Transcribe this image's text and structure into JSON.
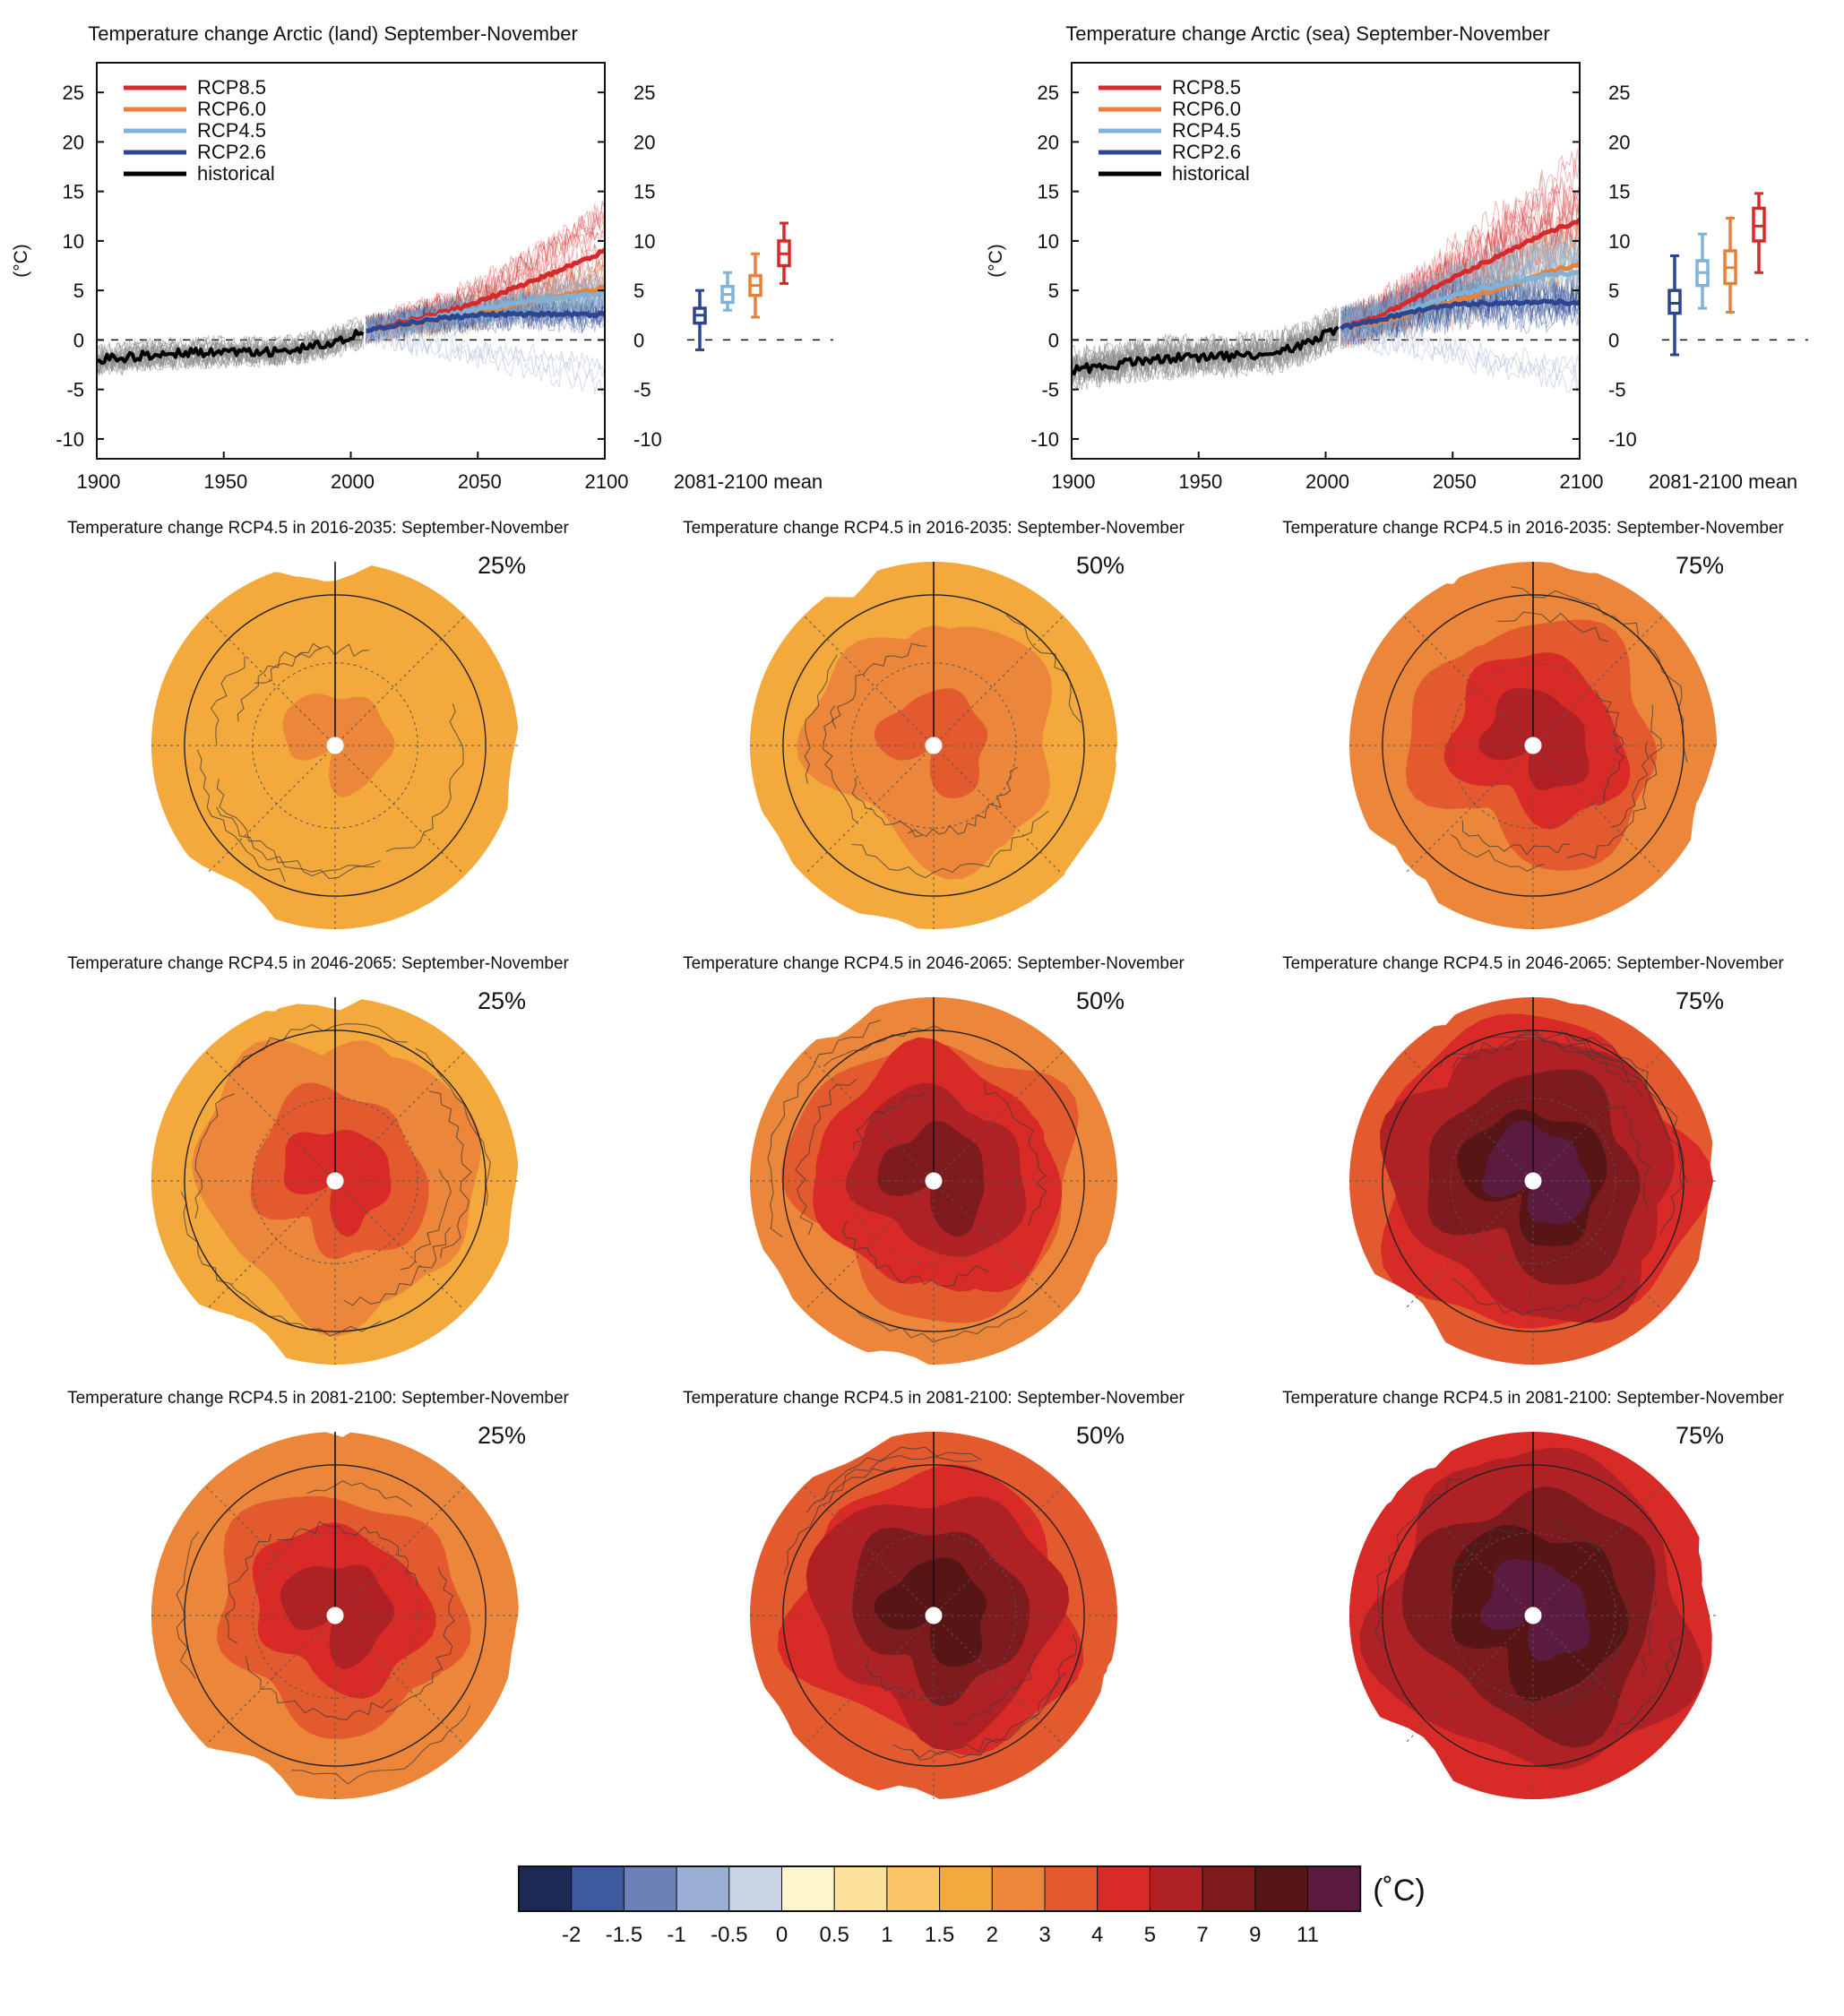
{
  "chart_data": [
    {
      "type": "line",
      "title": "Temperature change Arctic (land) September-November",
      "ylabel": "(°C)",
      "xlim": [
        1900,
        2100
      ],
      "ylim": [
        -12,
        28
      ],
      "xticks": [
        1900,
        1950,
        2000,
        2050,
        2100
      ],
      "yticks": [
        -10,
        -5,
        0,
        5,
        10,
        15,
        20,
        25
      ],
      "legend_position": "top-left",
      "series": [
        {
          "name": "historical",
          "color": "#000000",
          "x": [
            1900,
            1910,
            1920,
            1930,
            1940,
            1950,
            1960,
            1970,
            1980,
            1985,
            1990,
            1995,
            2000,
            2005
          ],
          "values": [
            -2,
            -1.8,
            -1.5,
            -1.4,
            -1.3,
            -1.2,
            -1.1,
            -1.2,
            -0.9,
            -0.7,
            -0.4,
            0,
            0.4,
            0.8
          ]
        },
        {
          "name": "RCP8.5",
          "color": "#d62a2a",
          "x": [
            2006,
            2020,
            2030,
            2040,
            2050,
            2060,
            2070,
            2080,
            2090,
            2100
          ],
          "values": [
            1,
            1.8,
            2.4,
            3.0,
            3.8,
            4.8,
            5.8,
            6.8,
            7.9,
            9.0
          ]
        },
        {
          "name": "RCP6.0",
          "color": "#e8803a",
          "x": [
            2006,
            2020,
            2030,
            2040,
            2050,
            2060,
            2070,
            2080,
            2090,
            2100
          ],
          "values": [
            1,
            1.5,
            1.9,
            2.3,
            2.8,
            3.3,
            3.8,
            4.3,
            4.8,
            5.3
          ]
        },
        {
          "name": "RCP4.5",
          "color": "#7fb2d8",
          "x": [
            2006,
            2020,
            2030,
            2040,
            2050,
            2060,
            2070,
            2080,
            2090,
            2100
          ],
          "values": [
            1,
            1.6,
            2.1,
            2.6,
            3.1,
            3.5,
            3.9,
            4.2,
            4.5,
            4.8
          ]
        },
        {
          "name": "RCP2.6",
          "color": "#2c4591",
          "x": [
            2006,
            2020,
            2030,
            2040,
            2050,
            2060,
            2070,
            2080,
            2090,
            2100
          ],
          "values": [
            1,
            1.6,
            2.0,
            2.3,
            2.5,
            2.6,
            2.6,
            2.6,
            2.6,
            2.6
          ]
        }
      ],
      "boxes_label": "2081-2100 mean",
      "boxes": [
        {
          "name": "RCP2.6",
          "color": "#2c4591",
          "min": -1,
          "q1": 1.7,
          "median": 2.5,
          "q3": 3.2,
          "max": 5
        },
        {
          "name": "RCP4.5",
          "color": "#7fb2d8",
          "min": 3,
          "q1": 3.8,
          "median": 4.6,
          "q3": 5.4,
          "max": 6.8
        },
        {
          "name": "RCP6.0",
          "color": "#e8803a",
          "min": 2.3,
          "q1": 4.5,
          "median": 5.5,
          "q3": 6.5,
          "max": 8.7
        },
        {
          "name": "RCP8.5",
          "color": "#d62a2a",
          "min": 5.7,
          "q1": 7.5,
          "median": 8.7,
          "q3": 10,
          "max": 11.8
        }
      ]
    },
    {
      "type": "line",
      "title": "Temperature change Arctic (sea) September-November",
      "ylabel": "(°C)",
      "xlim": [
        1900,
        2100
      ],
      "ylim": [
        -12,
        28
      ],
      "xticks": [
        1900,
        1950,
        2000,
        2050,
        2100
      ],
      "yticks": [
        -10,
        -5,
        0,
        5,
        10,
        15,
        20,
        25
      ],
      "legend_position": "top-left",
      "series": [
        {
          "name": "historical",
          "color": "#000000",
          "x": [
            1900,
            1910,
            1920,
            1930,
            1940,
            1950,
            1960,
            1970,
            1980,
            1985,
            1990,
            1995,
            2000,
            2005
          ],
          "values": [
            -3,
            -2.8,
            -2.4,
            -2.1,
            -1.8,
            -1.8,
            -1.7,
            -1.5,
            -1.3,
            -1.0,
            -0.6,
            0.0,
            0.6,
            1.2
          ]
        },
        {
          "name": "RCP8.5",
          "color": "#d62a2a",
          "x": [
            2006,
            2020,
            2030,
            2040,
            2050,
            2060,
            2070,
            2080,
            2090,
            2100
          ],
          "values": [
            1.2,
            2.3,
            3.5,
            4.8,
            6.2,
            7.5,
            8.8,
            10.0,
            11.1,
            12.1
          ]
        },
        {
          "name": "RCP6.0",
          "color": "#e8803a",
          "x": [
            2006,
            2020,
            2030,
            2040,
            2050,
            2060,
            2070,
            2080,
            2090,
            2100
          ],
          "values": [
            1.2,
            1.8,
            2.4,
            3.1,
            3.8,
            4.6,
            5.4,
            6.2,
            7.0,
            7.7
          ]
        },
        {
          "name": "RCP4.5",
          "color": "#7fb2d8",
          "x": [
            2006,
            2020,
            2030,
            2040,
            2050,
            2060,
            2070,
            2080,
            2090,
            2100
          ],
          "values": [
            1.2,
            2.0,
            2.8,
            3.6,
            4.4,
            5.1,
            5.7,
            6.2,
            6.6,
            6.9
          ]
        },
        {
          "name": "RCP2.6",
          "color": "#2c4591",
          "x": [
            2006,
            2020,
            2030,
            2040,
            2050,
            2060,
            2070,
            2080,
            2090,
            2100
          ],
          "values": [
            1.2,
            2.0,
            2.6,
            3.1,
            3.5,
            3.7,
            3.8,
            3.8,
            3.8,
            3.8
          ]
        }
      ],
      "boxes_label": "2081-2100 mean",
      "boxes": [
        {
          "name": "RCP2.6",
          "color": "#2c4591",
          "min": -1.5,
          "q1": 2.7,
          "median": 3.7,
          "q3": 5,
          "max": 8.5
        },
        {
          "name": "RCP4.5",
          "color": "#7fb2d8",
          "min": 3.2,
          "q1": 5.5,
          "median": 6.8,
          "q3": 8,
          "max": 10.7
        },
        {
          "name": "RCP6.0",
          "color": "#e8803a",
          "min": 2.8,
          "q1": 5.7,
          "median": 7.3,
          "q3": 9,
          "max": 12.3
        },
        {
          "name": "RCP8.5",
          "color": "#d62a2a",
          "min": 6.8,
          "q1": 10,
          "median": 11.5,
          "q3": 13.3,
          "max": 14.8
        }
      ]
    },
    {
      "type": "heatmap",
      "projection": "polar stereographic (Arctic)",
      "scenario": "RCP4.5",
      "season": "September-November",
      "maps": [
        {
          "title": "Temperature change RCP4.5 in 2016-2035: September-November",
          "percentile": "25%",
          "pole_value": 2,
          "rim_value": 1.5
        },
        {
          "title": "Temperature change RCP4.5 in 2016-2035: September-November",
          "percentile": "50%",
          "pole_value": 3,
          "rim_value": 1.5
        },
        {
          "title": "Temperature change RCP4.5 in 2016-2035: September-November",
          "percentile": "75%",
          "pole_value": 5,
          "rim_value": 2
        },
        {
          "title": "Temperature change RCP4.5 in 2046-2065: September-November",
          "percentile": "25%",
          "pole_value": 4,
          "rim_value": 1.5
        },
        {
          "title": "Temperature change RCP4.5 in 2046-2065: September-November",
          "percentile": "50%",
          "pole_value": 7,
          "rim_value": 2
        },
        {
          "title": "Temperature change RCP4.5 in 2046-2065: September-November",
          "percentile": "75%",
          "pole_value": 11,
          "rim_value": 3
        },
        {
          "title": "Temperature change RCP4.5 in 2081-2100: September-November",
          "percentile": "25%",
          "pole_value": 5,
          "rim_value": 2
        },
        {
          "title": "Temperature change RCP4.5 in 2081-2100: September-November",
          "percentile": "50%",
          "pole_value": 9,
          "rim_value": 3
        },
        {
          "title": "Temperature change RCP4.5 in 2081-2100: September-November",
          "percentile": "75%",
          "pole_value": 12,
          "rim_value": 4
        }
      ]
    }
  ],
  "colorbar": {
    "unit": "(˚C)",
    "tick_labels": [
      "-2",
      "-1.5",
      "-1",
      "-0.5",
      "0",
      "0.5",
      "1",
      "1.5",
      "2",
      "3",
      "4",
      "5",
      "7",
      "9",
      "11"
    ],
    "colors": [
      "#1e2a55",
      "#3d5a9e",
      "#6b81b8",
      "#9aaed4",
      "#c9d3e6",
      "#fff5cc",
      "#fde29e",
      "#f9c566",
      "#f3a93c",
      "#ec863a",
      "#e35a2e",
      "#d82b27",
      "#b02125",
      "#7e1b1e",
      "#571515",
      "#5a1b3f"
    ]
  }
}
